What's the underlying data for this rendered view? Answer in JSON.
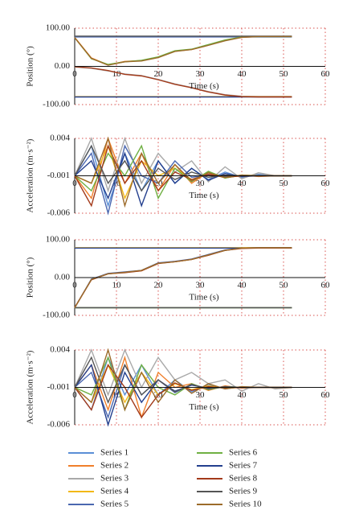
{
  "chart_data": [
    {
      "type": "line",
      "ylabel": "Position (°)",
      "xlabel": "Time (s)",
      "x": [
        0,
        4,
        8,
        12,
        16,
        20,
        24,
        28,
        32,
        36,
        40,
        44,
        48,
        52
      ],
      "xlim": [
        0,
        60
      ],
      "xticks": [
        0,
        10,
        20,
        30,
        40,
        50,
        60
      ],
      "ylim": [
        -100,
        100
      ],
      "yticks": [
        {
          "value": -100,
          "label": "-100.00"
        },
        {
          "value": 0,
          "label": "0.00"
        },
        {
          "value": 100,
          "label": "100.00"
        }
      ],
      "grid": true,
      "series": [
        {
          "color": "#5b8fd6",
          "values": [
            78,
            78,
            78,
            78,
            78,
            78,
            78,
            78,
            78,
            78,
            78,
            78,
            78,
            78
          ]
        },
        {
          "color": "#f07f2b",
          "values": [
            76,
            22,
            4,
            13,
            15,
            24,
            40,
            44,
            56,
            68,
            76,
            78,
            78,
            78
          ]
        },
        {
          "color": "#a9a9a9",
          "values": [
            -2,
            -5,
            -12,
            -20,
            -24,
            -34,
            -46,
            -55,
            -66,
            -74,
            -78,
            -79,
            -79,
            -79
          ]
        },
        {
          "color": "#f2b817",
          "values": [
            -79,
            -79,
            -79,
            -79,
            -79,
            -79,
            -79,
            -79,
            -79,
            -79,
            -79,
            -79,
            -79,
            -79
          ]
        },
        {
          "color": "#4a67b0",
          "values": [
            77,
            77,
            77,
            77,
            77,
            77,
            77,
            77,
            77,
            77,
            77,
            77,
            77,
            77
          ]
        },
        {
          "color": "#6fb043",
          "values": [
            75,
            20,
            5,
            12,
            16,
            25,
            41,
            45,
            57,
            69,
            77,
            78,
            78,
            78
          ]
        },
        {
          "color": "#233f8e",
          "values": [
            -80,
            -80,
            -80,
            -80,
            -80,
            -80,
            -80,
            -80,
            -80,
            -80,
            -80,
            -80,
            -80,
            -80
          ]
        },
        {
          "color": "#a33a1a",
          "values": [
            -1,
            -4,
            -11,
            -21,
            -25,
            -35,
            -47,
            -56,
            -67,
            -75,
            -79,
            -80,
            -80,
            -80
          ]
        },
        {
          "color": "#555555",
          "values": [
            79,
            79,
            79,
            79,
            79,
            79,
            79,
            79,
            79,
            79,
            79,
            79,
            79,
            79
          ]
        },
        {
          "color": "#9c6b2a",
          "values": [
            75,
            21,
            3,
            12,
            14,
            23,
            39,
            44,
            55,
            67,
            76,
            78,
            78,
            78
          ]
        }
      ]
    },
    {
      "type": "line",
      "ylabel": "Acceleration (m·s⁻²)",
      "xlabel": "Time (s)",
      "x": [
        0,
        4,
        8,
        12,
        16,
        20,
        24,
        28,
        32,
        36,
        40,
        44,
        48,
        52
      ],
      "xlim": [
        0,
        60
      ],
      "xticks": [
        0,
        10,
        20,
        30,
        40,
        50,
        60
      ],
      "ylim": [
        -0.006,
        0.004
      ],
      "yticks": [
        -0.006,
        -0.001,
        0.004
      ],
      "grid": true,
      "series": [
        {
          "color": "#5b8fd6",
          "values": [
            -0.001,
            0.003,
            -0.005,
            0.002,
            -0.003,
            0.001,
            -0.002,
            0.0,
            -0.0015,
            -0.0005,
            -0.0012,
            -0.0008,
            -0.001,
            -0.001
          ]
        },
        {
          "color": "#f07f2b",
          "values": [
            -0.001,
            -0.004,
            0.004,
            -0.002,
            0.002,
            -0.003,
            0.0005,
            -0.002,
            -0.0005,
            -0.0013,
            -0.0009,
            -0.0011,
            -0.001,
            -0.001
          ]
        },
        {
          "color": "#a9a9a9",
          "values": [
            -0.001,
            0.004,
            -0.003,
            0.004,
            -0.002,
            0.002,
            -0.0005,
            0.001,
            -0.0018,
            0.0002,
            -0.0014,
            -0.0006,
            -0.001,
            -0.001
          ]
        },
        {
          "color": "#f2b817",
          "values": [
            -0.001,
            -0.002,
            0.003,
            -0.004,
            0.001,
            -0.001,
            0.0,
            -0.0015,
            -0.0008,
            -0.0012,
            -0.001,
            -0.001,
            -0.001,
            -0.001
          ]
        },
        {
          "color": "#4a67b0",
          "values": [
            -0.001,
            0.002,
            -0.006,
            0.003,
            -0.001,
            -0.002,
            0.001,
            -0.0012,
            -0.0009,
            -0.0011,
            -0.001,
            -0.001,
            -0.001,
            -0.001
          ]
        },
        {
          "color": "#6fb043",
          "values": [
            -0.001,
            -0.003,
            0.002,
            -0.001,
            0.003,
            -0.004,
            0.0,
            -0.0018,
            -0.0004,
            -0.0013,
            -0.0009,
            -0.001,
            -0.001,
            -0.001
          ]
        },
        {
          "color": "#233f8e",
          "values": [
            -0.001,
            0.001,
            -0.004,
            0.002,
            -0.005,
            0.001,
            -0.002,
            0.0,
            -0.0016,
            -0.0007,
            -0.0011,
            -0.001,
            -0.001,
            -0.001
          ]
        },
        {
          "color": "#a33a1a",
          "values": [
            -0.001,
            -0.005,
            0.003,
            -0.002,
            0.001,
            -0.003,
            -0.0005,
            -0.0015,
            -0.0008,
            -0.0012,
            -0.001,
            -0.001,
            -0.001,
            -0.001
          ]
        },
        {
          "color": "#555555",
          "values": [
            -0.001,
            0.003,
            -0.002,
            0.001,
            -0.003,
            0.0,
            -0.0015,
            -0.0005,
            -0.0012,
            -0.0009,
            -0.001,
            -0.001,
            -0.001,
            -0.001
          ]
        },
        {
          "color": "#9c6b2a",
          "values": [
            -0.001,
            -0.002,
            0.004,
            -0.005,
            0.002,
            -0.002,
            0.0005,
            -0.0017,
            -0.0006,
            -0.0012,
            -0.0009,
            -0.001,
            -0.001,
            -0.001
          ]
        }
      ]
    },
    {
      "type": "line",
      "ylabel": "Position (°)",
      "xlabel": "Time (s)",
      "x": [
        0,
        4,
        8,
        12,
        16,
        20,
        24,
        28,
        32,
        36,
        40,
        44,
        48,
        52
      ],
      "xlim": [
        0,
        60
      ],
      "xticks": [
        0,
        10,
        20,
        30,
        40,
        50,
        60
      ],
      "ylim": [
        -100,
        100
      ],
      "yticks": [
        {
          "value": -100,
          "label": "-100.00"
        },
        {
          "value": 0,
          "label": "0.00"
        },
        {
          "value": 100,
          "label": "100.00"
        }
      ],
      "grid": true,
      "series": [
        {
          "color": "#5b8fd6",
          "values": [
            78,
            78,
            78,
            78,
            78,
            78,
            78,
            78,
            78,
            78,
            78,
            78,
            78,
            78
          ]
        },
        {
          "color": "#f07f2b",
          "values": [
            -80,
            -5,
            10,
            14,
            18,
            38,
            42,
            48,
            60,
            72,
            78,
            79,
            79,
            79
          ]
        },
        {
          "color": "#a9a9a9",
          "values": [
            -79,
            -79,
            -79,
            -79,
            -79,
            -79,
            -79,
            -79,
            -79,
            -79,
            -79,
            -79,
            -79,
            -79
          ]
        },
        {
          "color": "#f2b817",
          "values": [
            79,
            79,
            79,
            79,
            79,
            79,
            79,
            79,
            79,
            79,
            79,
            79,
            79,
            79
          ]
        },
        {
          "color": "#4a67b0",
          "values": [
            -80,
            -4,
            11,
            15,
            19,
            39,
            43,
            49,
            61,
            73,
            78,
            79,
            79,
            79
          ]
        },
        {
          "color": "#6fb043",
          "values": [
            -80,
            -80,
            -80,
            -80,
            -80,
            -80,
            -80,
            -80,
            -80,
            -80,
            -80,
            -80,
            -80,
            -80
          ]
        },
        {
          "color": "#233f8e",
          "values": [
            78,
            78,
            78,
            78,
            78,
            78,
            78,
            78,
            78,
            78,
            78,
            78,
            78,
            78
          ]
        },
        {
          "color": "#a33a1a",
          "values": [
            -79,
            -6,
            10,
            13,
            18,
            37,
            42,
            48,
            59,
            72,
            77,
            78,
            78,
            78
          ]
        },
        {
          "color": "#555555",
          "values": [
            -80,
            -80,
            -80,
            -80,
            -80,
            -80,
            -80,
            -80,
            -80,
            -80,
            -80,
            -80,
            -80,
            -80
          ]
        },
        {
          "color": "#9c6b2a",
          "values": [
            -80,
            -5,
            10,
            14,
            19,
            38,
            42,
            48,
            60,
            72,
            78,
            79,
            79,
            79
          ]
        }
      ]
    },
    {
      "type": "line",
      "ylabel": "Acceleration (m·s⁻²)",
      "xlabel": "Time (s)",
      "x": [
        0,
        4,
        8,
        12,
        16,
        20,
        24,
        28,
        32,
        36,
        40,
        44,
        48,
        52
      ],
      "xlim": [
        0,
        60
      ],
      "xticks": [
        0,
        10,
        20,
        30,
        40,
        50,
        60
      ],
      "ylim": [
        -0.006,
        0.004
      ],
      "yticks": [
        -0.006,
        -0.001,
        0.004
      ],
      "grid": true,
      "legend": "bottom",
      "series": [
        {
          "name": "Series 1",
          "color": "#5b8fd6",
          "values": [
            -0.001,
            -0.004,
            0.003,
            -0.002,
            0.002,
            -0.002,
            0.0,
            -0.0016,
            -0.0006,
            -0.0012,
            -0.0009,
            -0.001,
            -0.001,
            -0.001
          ]
        },
        {
          "name": "Series 2",
          "color": "#f07f2b",
          "values": [
            -0.001,
            0.002,
            -0.004,
            0.003,
            -0.005,
            0.001,
            -0.001,
            -0.0005,
            -0.0014,
            -0.0008,
            -0.0011,
            -0.001,
            -0.001,
            -0.001
          ]
        },
        {
          "name": "Series 3",
          "color": "#a9a9a9",
          "values": [
            -0.001,
            0.004,
            -0.002,
            0.004,
            -0.001,
            0.003,
            0.0,
            0.001,
            -0.0005,
            0.0,
            -0.0015,
            -0.0005,
            -0.0012,
            -0.001
          ]
        },
        {
          "name": "Series 4",
          "color": "#f2b817",
          "values": [
            -0.001,
            -0.003,
            0.002,
            -0.003,
            0.001,
            -0.002,
            -0.0005,
            -0.0013,
            -0.0008,
            -0.0011,
            -0.001,
            -0.001,
            -0.001,
            -0.001
          ]
        },
        {
          "name": "Series 5",
          "color": "#4a67b0",
          "values": [
            -0.001,
            0.001,
            -0.005,
            0.002,
            -0.002,
            0.0,
            -0.0017,
            -0.0006,
            -0.0012,
            -0.0009,
            -0.001,
            -0.001,
            -0.001,
            -0.001
          ]
        },
        {
          "name": "Series 6",
          "color": "#6fb043",
          "values": [
            -0.001,
            -0.002,
            0.003,
            -0.004,
            0.002,
            -0.001,
            -0.002,
            -0.0005,
            -0.0013,
            -0.0009,
            -0.001,
            -0.001,
            -0.001,
            -0.001
          ]
        },
        {
          "name": "Series 7",
          "color": "#233f8e",
          "values": [
            -0.001,
            0.002,
            -0.006,
            0.001,
            -0.003,
            0.0,
            -0.0015,
            -0.0007,
            -0.0011,
            -0.001,
            -0.001,
            -0.001,
            -0.001,
            -0.001
          ]
        },
        {
          "name": "Series 8",
          "color": "#a33a1a",
          "values": [
            -0.001,
            -0.004,
            0.002,
            -0.001,
            -0.005,
            -0.002,
            -0.0004,
            -0.0014,
            -0.0009,
            -0.0011,
            -0.001,
            -0.001,
            -0.001,
            -0.001
          ]
        },
        {
          "name": "Series 9",
          "color": "#555555",
          "values": [
            -0.001,
            0.003,
            -0.003,
            0.002,
            -0.002,
            0.0,
            -0.0016,
            -0.0006,
            -0.0012,
            -0.0009,
            -0.001,
            -0.001,
            -0.001,
            -0.001
          ]
        },
        {
          "name": "Series 10",
          "color": "#9c6b2a",
          "values": [
            -0.001,
            -0.003,
            0.004,
            -0.004,
            0.001,
            -0.003,
            0.0,
            -0.0018,
            -0.0005,
            -0.0012,
            -0.0009,
            -0.001,
            -0.001,
            -0.001
          ]
        }
      ]
    }
  ]
}
